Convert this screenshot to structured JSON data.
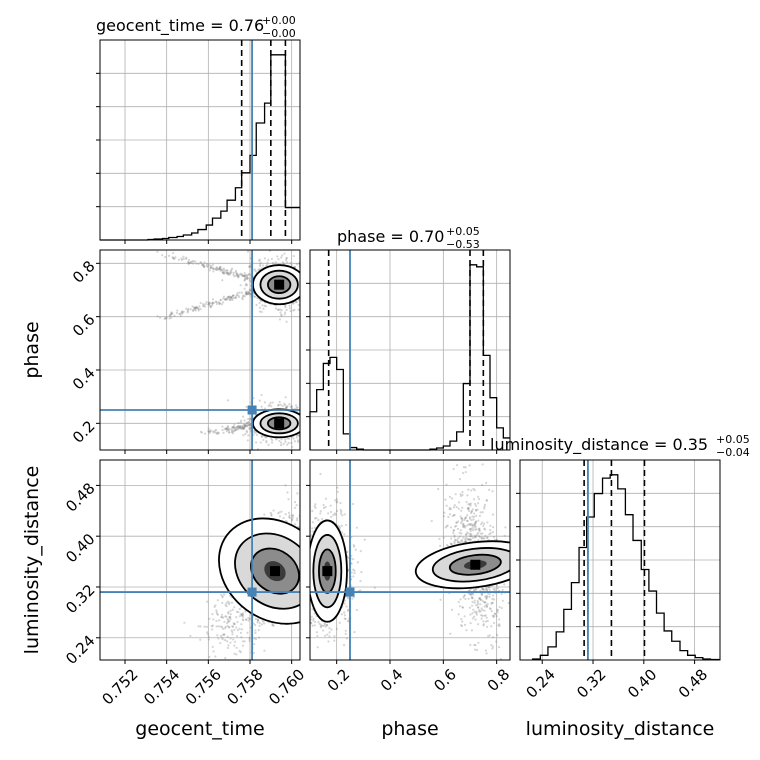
{
  "figure": {
    "titles": [
      {
        "name": "geocent_time",
        "value": "0.76",
        "plus": "+0.00",
        "minus": "−0.00"
      },
      {
        "name": "phase",
        "value": "0.70",
        "plus": "+0.05",
        "minus": "−0.53"
      },
      {
        "name": "luminosity_distance",
        "value": "0.35",
        "plus": "+0.05",
        "minus": "−0.04"
      }
    ],
    "truth_color": "#4682b4"
  },
  "chart_data": {
    "type": "corner",
    "parameters": [
      {
        "name": "geocent_time",
        "axis_label": "geocent_time",
        "range": [
          0.7508,
          0.7604
        ],
        "ticks": [
          0.752,
          0.754,
          0.756,
          0.758,
          0.76
        ],
        "tick_labels": [
          "0.752",
          "0.754",
          "0.756",
          "0.758",
          "0.760"
        ],
        "truth": 0.7581,
        "quantiles": [
          0.7576,
          0.759,
          0.7597
        ]
      },
      {
        "name": "phase",
        "axis_label": "phase",
        "range": [
          0.1,
          0.85
        ],
        "ticks": [
          0.2,
          0.4,
          0.6,
          0.8
        ],
        "tick_labels": [
          "0.2",
          "0.4",
          "0.6",
          "0.8"
        ],
        "truth": 0.25,
        "quantiles": [
          0.17,
          0.7,
          0.75
        ]
      },
      {
        "name": "luminosity_distance",
        "axis_label": "luminosity_distance",
        "range": [
          0.205,
          0.52
        ],
        "ticks": [
          0.24,
          0.32,
          0.4,
          0.48
        ],
        "tick_labels": [
          "0.24",
          "0.32",
          "0.40",
          "0.48"
        ],
        "truth": 0.312,
        "quantiles": [
          0.306,
          0.349,
          0.401
        ]
      }
    ],
    "histograms": [
      {
        "parameter": "geocent_time",
        "bin_edges": [
          0.7508,
          0.7531,
          0.7534,
          0.7538,
          0.7541,
          0.7545,
          0.7548,
          0.7552,
          0.7555,
          0.7559,
          0.7562,
          0.7566,
          0.7569,
          0.7573,
          0.7576,
          0.758,
          0.7583,
          0.7587,
          0.759,
          0.7594,
          0.7597,
          0.76,
          0.7604
        ],
        "counts": [
          0,
          1,
          2,
          3,
          5,
          7,
          10,
          14,
          21,
          30,
          44,
          58,
          80,
          105,
          135,
          170,
          235,
          275,
          372,
          372,
          65,
          65
        ]
      },
      {
        "parameter": "phase",
        "bin_edges": [
          0.1,
          0.125,
          0.15,
          0.175,
          0.2,
          0.225,
          0.25,
          0.275,
          0.3,
          0.35,
          0.4,
          0.45,
          0.5,
          0.55,
          0.575,
          0.6,
          0.625,
          0.65,
          0.675,
          0.7,
          0.725,
          0.75,
          0.775,
          0.8,
          0.825,
          0.85
        ],
        "counts": [
          95,
          150,
          215,
          230,
          200,
          40,
          6,
          2,
          0,
          0,
          0,
          0,
          0,
          2,
          5,
          10,
          22,
          45,
          165,
          460,
          455,
          235,
          130,
          55,
          30
        ]
      },
      {
        "parameter": "luminosity_distance",
        "bin_edges": [
          0.225,
          0.237,
          0.249,
          0.262,
          0.274,
          0.286,
          0.298,
          0.31,
          0.322,
          0.335,
          0.347,
          0.359,
          0.371,
          0.383,
          0.396,
          0.408,
          0.42,
          0.432,
          0.444,
          0.457,
          0.469,
          0.481,
          0.493,
          0.505,
          0.52
        ],
        "counts": [
          2,
          10,
          28,
          60,
          108,
          165,
          240,
          305,
          355,
          388,
          395,
          365,
          310,
          255,
          193,
          147,
          100,
          62,
          40,
          20,
          10,
          5,
          2,
          1
        ]
      }
    ],
    "contour_panels": [
      {
        "x": "geocent_time",
        "y": "phase",
        "modes": [
          {
            "center": [
              0.7594,
              0.72
            ],
            "sx": 0.0006,
            "sy": 0.035,
            "w": 1.0
          },
          {
            "center": [
              0.7594,
              0.2
            ],
            "sx": 0.0006,
            "sy": 0.025,
            "w": 0.9
          }
        ],
        "arms": [
          {
            "from": [
              0.7535,
              0.84
            ],
            "to": [
              0.7598,
              0.71
            ]
          },
          {
            "from": [
              0.7531,
              0.58
            ],
            "to": [
              0.7598,
              0.73
            ]
          },
          {
            "from": [
              0.7555,
              0.16
            ],
            "to": [
              0.7598,
              0.21
            ]
          }
        ]
      },
      {
        "x": "geocent_time",
        "y": "luminosity_distance",
        "modes": [
          {
            "center": [
              0.7592,
              0.345
            ],
            "sx": 0.0011,
            "sy": 0.045,
            "w": 1.0,
            "rho": 0.75
          }
        ]
      },
      {
        "x": "phase",
        "y": "luminosity_distance",
        "modes": [
          {
            "center": [
              0.165,
              0.345
            ],
            "sx": 0.035,
            "sy": 0.038,
            "w": 0.9
          },
          {
            "center": [
              0.72,
              0.355
            ],
            "sx": 0.04,
            "sy": 0.045,
            "w": 1.0,
            "rho": -0.3
          }
        ]
      }
    ]
  }
}
